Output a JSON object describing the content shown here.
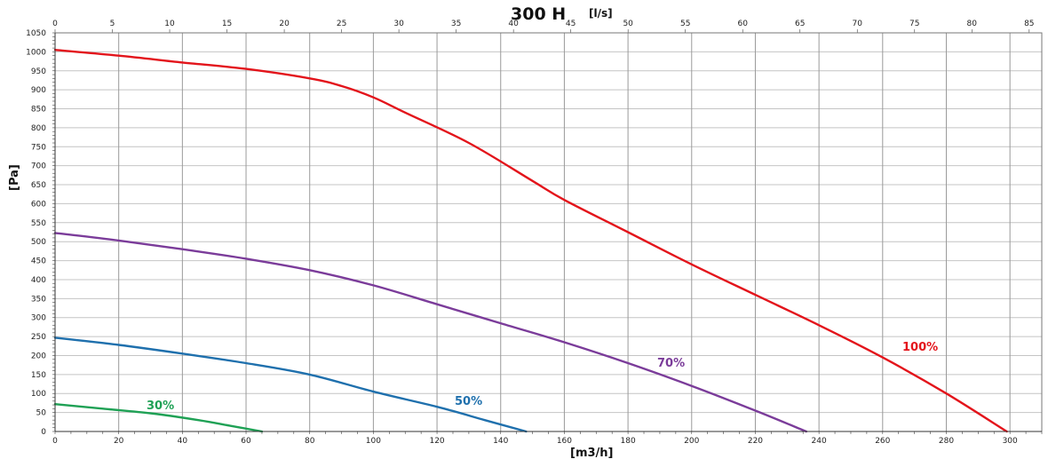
{
  "chart_data": {
    "type": "line",
    "title": "300 H",
    "title_unit": "[l/s]",
    "xlabel": "[m3/h]",
    "ylabel": "[Pa]",
    "xlim": [
      0,
      310
    ],
    "ylim": [
      0,
      1050
    ],
    "x_ticks": [
      0,
      20,
      40,
      60,
      80,
      100,
      120,
      140,
      160,
      180,
      200,
      220,
      240,
      260,
      280,
      300
    ],
    "y_ticks": [
      0,
      50,
      100,
      150,
      200,
      250,
      300,
      350,
      400,
      450,
      500,
      550,
      600,
      650,
      700,
      750,
      800,
      850,
      900,
      950,
      1000,
      1050
    ],
    "x2_lim": [
      0,
      86.1
    ],
    "x2_ticks": [
      0,
      5,
      10,
      15,
      20,
      25,
      30,
      35,
      40,
      45,
      50,
      55,
      60,
      65,
      70,
      75,
      80,
      85
    ],
    "grid": true,
    "series": [
      {
        "name": "100%",
        "color": "#e3141b",
        "x": [
          0,
          20,
          40,
          60,
          80,
          90,
          100,
          110,
          130,
          150,
          160,
          180,
          200,
          220,
          240,
          260,
          280,
          299
        ],
        "y": [
          1005,
          990,
          972,
          955,
          930,
          910,
          880,
          840,
          760,
          660,
          610,
          525,
          440,
          360,
          280,
          195,
          100,
          0
        ]
      },
      {
        "name": "70%",
        "color": "#7b3c9a",
        "x": [
          0,
          20,
          40,
          60,
          80,
          100,
          120,
          140,
          160,
          180,
          200,
          220,
          236
        ],
        "y": [
          523,
          503,
          480,
          455,
          425,
          385,
          335,
          285,
          235,
          180,
          120,
          55,
          0
        ]
      },
      {
        "name": "50%",
        "color": "#1f70ad",
        "x": [
          0,
          20,
          40,
          60,
          80,
          100,
          120,
          135,
          148
        ],
        "y": [
          247,
          228,
          205,
          180,
          150,
          105,
          65,
          30,
          0
        ]
      },
      {
        "name": "30%",
        "color": "#1fa155",
        "x": [
          0,
          15,
          30,
          45,
          55,
          65
        ],
        "y": [
          72,
          60,
          48,
          30,
          15,
          0
        ]
      }
    ]
  }
}
